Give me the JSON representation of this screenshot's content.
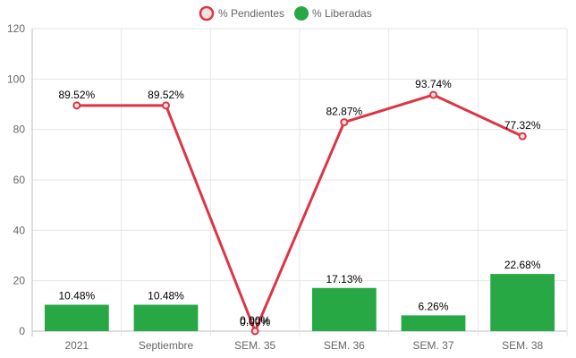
{
  "chart_data": {
    "type": "bar",
    "categories": [
      "2021",
      "Septiembre",
      "SEM. 35",
      "SEM. 36",
      "SEM. 37",
      "SEM. 38"
    ],
    "series": [
      {
        "name": "% Pendientes",
        "type": "line",
        "color": "#dc3545",
        "values": [
          89.52,
          89.52,
          0,
          82.87,
          93.74,
          77.32
        ],
        "labels": [
          "89.52%",
          "89.52%",
          "0.00%",
          "82.87%",
          "93.74%",
          "77.32%"
        ]
      },
      {
        "name": "% Liberadas",
        "type": "bar",
        "color": "#28a745",
        "values": [
          10.48,
          10.48,
          0,
          17.13,
          6.26,
          22.68
        ],
        "labels": [
          "10.48%",
          "10.48%",
          "0.00%",
          "17.13%",
          "6.26%",
          "22.68%"
        ]
      }
    ],
    "ylim": [
      0,
      120
    ],
    "yticks": [
      0,
      20,
      40,
      60,
      80,
      100,
      120
    ],
    "grid": true,
    "legend": "top-center"
  }
}
